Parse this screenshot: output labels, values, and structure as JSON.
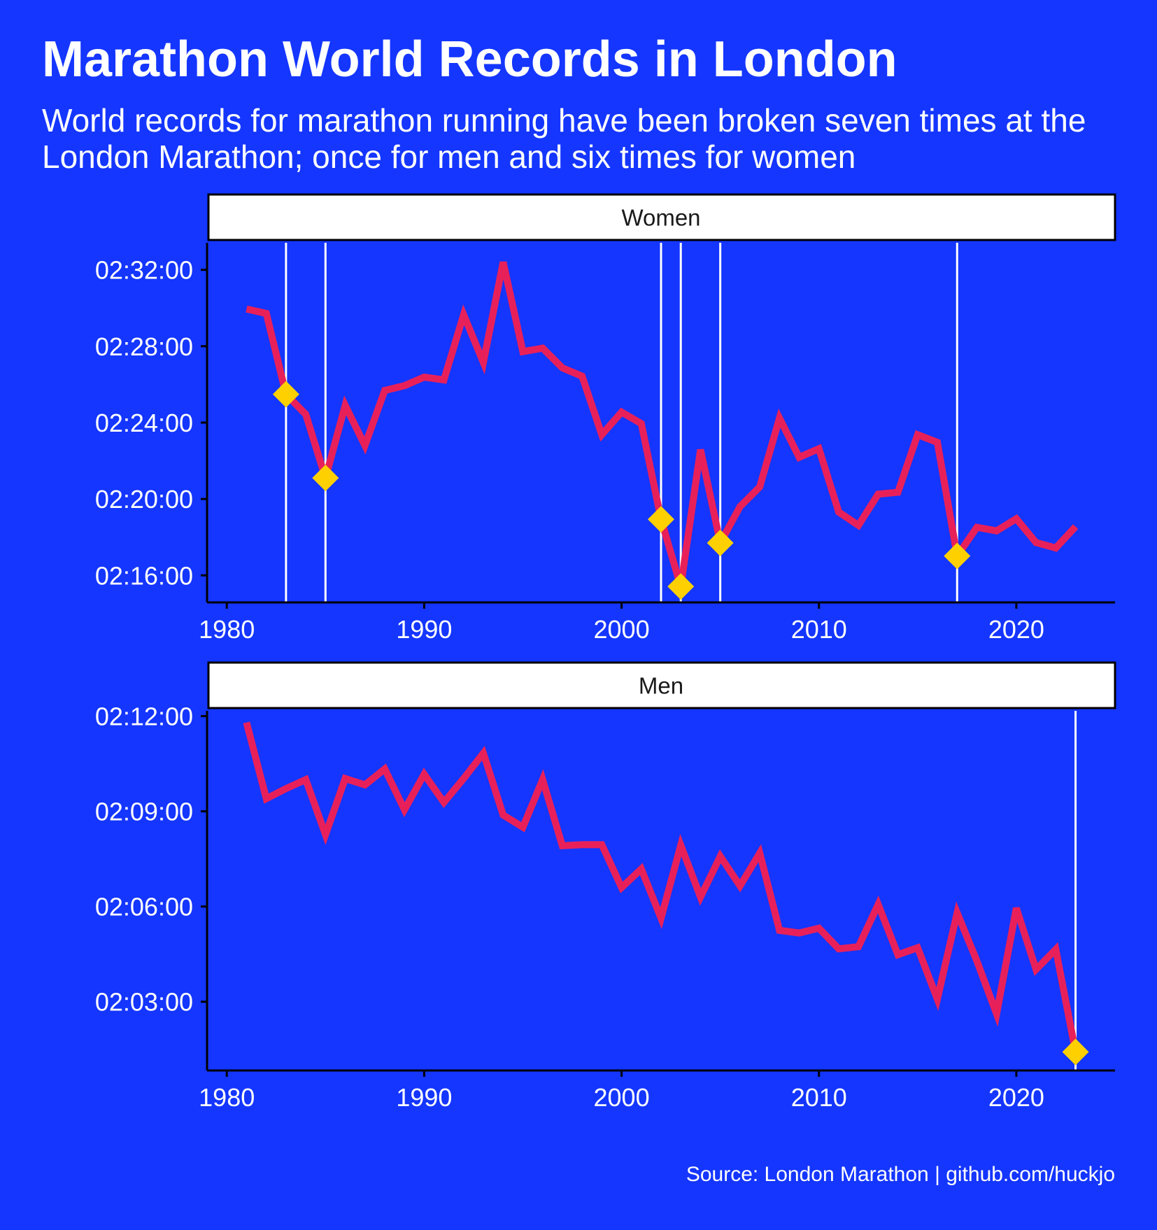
{
  "title": "Marathon World Records in London",
  "subtitle": "World records for marathon running have been broken seven times at the London Marathon; once for men and six times for women",
  "caption": "Source: London Marathon | github.com/huckjo",
  "colors": {
    "background": "#1436FF",
    "line": "#E8205A",
    "record_marker": "#FFD000",
    "record_vline": "#FFFFFF"
  },
  "chart_data": [
    {
      "type": "line",
      "facet": "Women",
      "x_ticks": [
        1980,
        1990,
        2000,
        2010,
        2020
      ],
      "xlim": [
        1979,
        2025
      ],
      "y_ticks": [
        "02:16:00",
        "02:20:00",
        "02:24:00",
        "02:28:00",
        "02:32:00"
      ],
      "ylim": [
        "02:14:35",
        "02:33:25"
      ],
      "x": [
        1981,
        1982,
        1983,
        1984,
        1985,
        1986,
        1987,
        1988,
        1989,
        1990,
        1991,
        1992,
        1993,
        1994,
        1995,
        1996,
        1997,
        1998,
        1999,
        2000,
        2001,
        2002,
        2003,
        2004,
        2005,
        2006,
        2007,
        2008,
        2009,
        2010,
        2011,
        2012,
        2013,
        2014,
        2015,
        2016,
        2017,
        2018,
        2019,
        2020,
        2021,
        2022,
        2023
      ],
      "y": [
        "02:29:57",
        "02:29:43",
        "02:25:29",
        "02:24:26",
        "02:21:06",
        "02:24:54",
        "02:22:48",
        "02:25:41",
        "02:25:56",
        "02:26:23",
        "02:26:14",
        "02:29:39",
        "02:27:09",
        "02:32:24",
        "02:27:43",
        "02:27:54",
        "02:26:52",
        "02:26:26",
        "02:23:22",
        "02:24:33",
        "02:23:57",
        "02:18:56",
        "02:15:25",
        "02:22:35",
        "02:17:42",
        "02:19:36",
        "02:20:38",
        "02:24:14",
        "02:22:11",
        "02:22:38",
        "02:19:19",
        "02:18:37",
        "02:20:15",
        "02:20:21",
        "02:23:22",
        "02:22:58",
        "02:17:01",
        "02:18:31",
        "02:18:20",
        "02:18:58",
        "02:17:43",
        "02:17:26",
        "02:18:33"
      ],
      "records": [
        {
          "year": 1983,
          "time": "02:25:29"
        },
        {
          "year": 1985,
          "time": "02:21:06"
        },
        {
          "year": 2002,
          "time": "02:18:56"
        },
        {
          "year": 2003,
          "time": "02:15:25"
        },
        {
          "year": 2005,
          "time": "02:17:42"
        },
        {
          "year": 2017,
          "time": "02:17:01"
        }
      ]
    },
    {
      "type": "line",
      "facet": "Men",
      "x_ticks": [
        1980,
        1990,
        2000,
        2010,
        2020
      ],
      "xlim": [
        1979,
        2025
      ],
      "y_ticks": [
        "02:03:00",
        "02:06:00",
        "02:09:00",
        "02:12:00"
      ],
      "ylim": [
        "02:00:50",
        "02:12:10"
      ],
      "x": [
        1981,
        1982,
        1983,
        1984,
        1985,
        1986,
        1987,
        1988,
        1989,
        1990,
        1991,
        1992,
        1993,
        1994,
        1995,
        1996,
        1997,
        1998,
        1999,
        2000,
        2001,
        2002,
        2003,
        2004,
        2005,
        2006,
        2007,
        2008,
        2009,
        2010,
        2011,
        2012,
        2013,
        2014,
        2015,
        2016,
        2017,
        2018,
        2019,
        2020,
        2021,
        2022,
        2023
      ],
      "y": [
        "02:11:48",
        "02:09:24",
        "02:09:43",
        "02:10:00",
        "02:08:16",
        "02:10:02",
        "02:09:50",
        "02:10:20",
        "02:09:03",
        "02:10:10",
        "02:09:17",
        "02:10:02",
        "02:10:50",
        "02:08:53",
        "02:08:30",
        "02:10:00",
        "02:07:55",
        "02:07:57",
        "02:07:57",
        "02:06:36",
        "02:07:11",
        "02:05:38",
        "02:07:56",
        "02:06:18",
        "02:07:35",
        "02:06:39",
        "02:07:41",
        "02:05:15",
        "02:05:10",
        "02:05:19",
        "02:04:40",
        "02:04:44",
        "02:06:04",
        "02:04:29",
        "02:04:42",
        "02:03:05",
        "02:05:48",
        "02:04:17",
        "02:02:37",
        "02:05:57",
        "02:04:01",
        "02:04:39",
        "02:01:25"
      ],
      "records": [
        {
          "year": 2023,
          "time": "02:01:25"
        }
      ]
    }
  ]
}
